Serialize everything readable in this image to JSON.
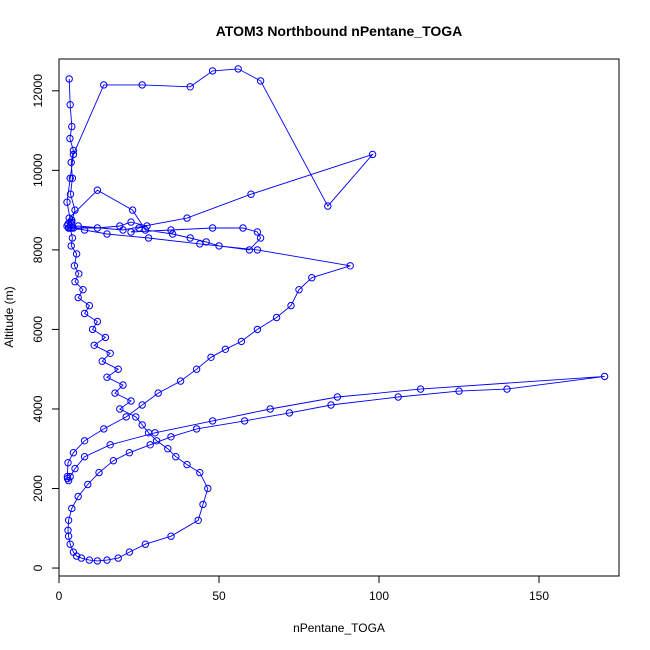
{
  "chart_data": {
    "type": "line",
    "title": "ATOM3 Northbound nPentane_TOGA",
    "xlabel": "nPentane_TOGA",
    "ylabel": "Altitude (m)",
    "xlim": [
      0,
      175
    ],
    "ylim": [
      -200,
      12800
    ],
    "x_ticks": [
      0,
      50,
      100,
      150
    ],
    "y_ticks": [
      0,
      2000,
      4000,
      6000,
      8000,
      10000,
      12000
    ],
    "x_tick_labels": [
      "0",
      "50",
      "100",
      "150"
    ],
    "y_tick_labels": [
      "0",
      "2000",
      "4000",
      "6000",
      "8000",
      "10000",
      "12000"
    ],
    "series_color": "#0000ff",
    "marker": "open-circle",
    "series": [
      {
        "x": [
          3.2,
          3.5,
          4.0,
          3.4,
          4.5,
          3.8,
          4.2,
          3.6,
          5.0,
          4.0,
          3.5,
          4.2,
          3.8,
          5.5,
          4.8,
          6.2,
          5.0,
          7.5,
          6.0,
          9.5,
          8.0,
          12.0,
          10.5,
          14.5,
          11.0,
          16.0,
          13.5,
          18.5,
          15.0,
          20.0,
          17.5,
          22.5,
          19.0,
          24.0,
          26.0,
          28.0,
          30.5,
          34.0,
          36.5,
          40.0,
          44.0,
          46.5,
          45.0,
          43.5,
          35.0,
          27.0,
          22.0,
          18.5,
          15.0,
          12.0,
          9.5,
          7.0,
          5.5,
          4.5,
          3.5,
          3.0,
          2.8,
          3.0,
          4.0,
          6.0,
          9.0,
          12.5,
          17.0,
          22.0,
          28.5,
          35.0,
          43.0,
          58.0,
          72.0,
          85.0,
          106.0,
          125.0,
          140.0,
          170.5,
          113.0,
          87.0,
          66.0,
          48.0,
          30.0,
          16.0,
          8.0,
          5.0,
          3.5,
          3.0,
          2.7,
          2.6,
          2.8,
          4.5,
          8.0,
          14.0,
          21.0,
          26.0,
          31.0,
          38.0,
          43.0,
          47.5,
          52.0,
          57.0,
          62.0,
          68.0,
          72.5,
          75.0,
          79.0,
          91.0,
          62.0,
          44.0,
          28.0,
          15.0,
          8.0,
          4.5,
          3.0,
          2.5,
          2.8,
          3.5,
          4.0,
          3.2,
          12.0,
          23.0,
          27.0,
          35.5,
          41.0,
          46.0,
          50.0,
          59.5,
          63.0,
          62.0,
          57.5,
          48.0,
          35.0,
          22.5,
          25.0,
          27.5,
          22.5,
          19.0,
          12.0,
          4.0,
          2.5,
          3.5,
          4.5,
          14.0,
          26.0,
          41.0,
          48.0,
          56.0,
          63.0,
          84.0,
          98.0,
          60.0,
          40.0,
          20.0,
          6.0,
          3.0
        ],
        "y": [
          12300,
          11650,
          11100,
          10800,
          10500,
          10200,
          9800,
          9400,
          9000,
          8700,
          8550,
          8300,
          8100,
          7900,
          7600,
          7400,
          7200,
          7000,
          6800,
          6600,
          6400,
          6200,
          6000,
          5800,
          5600,
          5400,
          5200,
          5000,
          4800,
          4600,
          4400,
          4200,
          4000,
          3800,
          3600,
          3400,
          3200,
          3000,
          2800,
          2600,
          2400,
          2000,
          1600,
          1200,
          800,
          600,
          400,
          250,
          200,
          180,
          200,
          250,
          300,
          400,
          600,
          800,
          950,
          1200,
          1500,
          1800,
          2100,
          2400,
          2700,
          2900,
          3100,
          3300,
          3500,
          3700,
          3900,
          4100,
          4300,
          4450,
          4500,
          4820,
          4500,
          4300,
          4000,
          3700,
          3400,
          3100,
          2800,
          2500,
          2300,
          2200,
          2250,
          2300,
          2650,
          2900,
          3200,
          3500,
          3800,
          4100,
          4400,
          4700,
          5000,
          5300,
          5500,
          5700,
          6000,
          6300,
          6600,
          7000,
          7300,
          7600,
          8000,
          8150,
          8300,
          8400,
          8500,
          8550,
          8550,
          8600,
          8650,
          8700,
          8750,
          8800,
          9500,
          9000,
          8500,
          8400,
          8300,
          8200,
          8100,
          8000,
          8300,
          8450,
          8550,
          8550,
          8500,
          8450,
          8550,
          8600,
          8700,
          8600,
          8550,
          8550,
          9200,
          9800,
          10400,
          12150,
          12150,
          12100,
          12500,
          12550,
          12250,
          9100,
          10400,
          9400,
          8800,
          8500,
          8600,
          8550
        ]
      }
    ]
  }
}
